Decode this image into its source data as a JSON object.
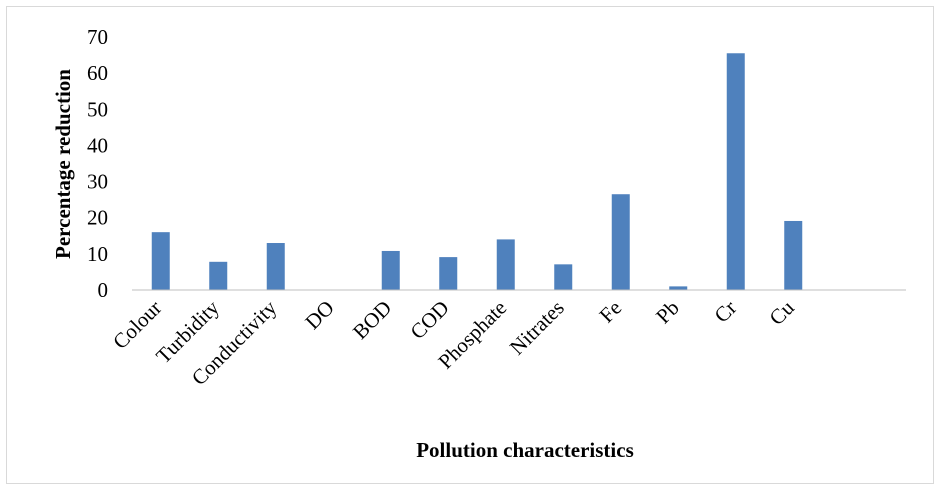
{
  "chart_data": {
    "type": "bar",
    "title": "",
    "xlabel": "Pollution characteristics",
    "ylabel": "Percentage reduction",
    "categories": [
      "Colour",
      "Turbidity",
      "Conductivity",
      "DO",
      "BOD",
      "COD",
      "Phosphate",
      "Nitrates",
      "Fe",
      "Pb",
      "Cr",
      "Cu"
    ],
    "values": [
      16,
      7.8,
      13,
      0,
      10.8,
      9.1,
      14,
      7.1,
      26.5,
      1,
      65.5,
      19.1
    ],
    "y_ticks": [
      "0",
      "10",
      "20",
      "30",
      "40",
      "50",
      "60",
      "70"
    ],
    "ylim": [
      0,
      70
    ],
    "grid": false,
    "legend": "none",
    "bar_color": "#4f81bd",
    "axis_color": "#bfbfbf"
  }
}
